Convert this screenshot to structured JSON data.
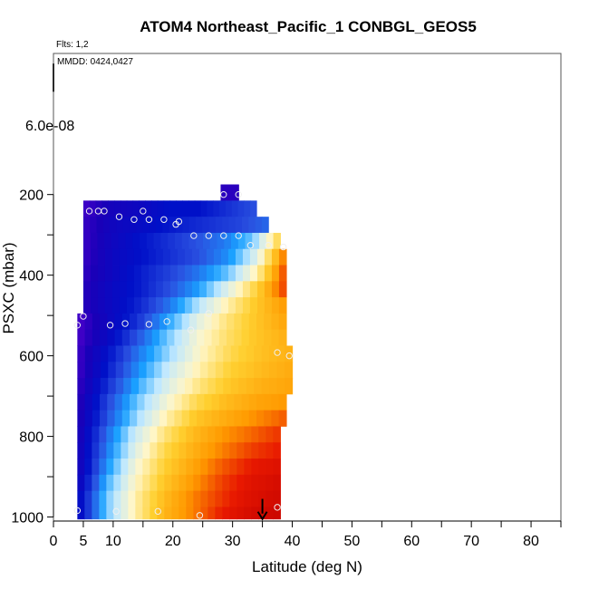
{
  "chart_data": {
    "type": "heatmap",
    "title": "ATOM4 Northeast_Pacific_1 CONBGL_GEOS5",
    "flights_label": "Flts: 1,2",
    "dates_label": "MMDD: 0424,0427",
    "xlabel": "Latitude (deg N)",
    "ylabel": "PSXC (mbar)",
    "xlim": [
      0,
      85
    ],
    "ylim": [
      1010,
      -150
    ],
    "y_reversed": true,
    "x_ticks": [
      0,
      5,
      10,
      20,
      30,
      40,
      50,
      60,
      70,
      80
    ],
    "x_minor_ticks": [
      15,
      25,
      35,
      45,
      55,
      65,
      75,
      85
    ],
    "y_ticks": [
      200,
      400,
      600,
      800,
      1000
    ],
    "y_ticks_minor": [
      300,
      500,
      700,
      900
    ],
    "colorbar_tick_label": "6.0e-08",
    "colormap": [
      "#6a00d8",
      "#1a00b8",
      "#0010c8",
      "#2a50e0",
      "#1aa0ff",
      "#bfe8ff",
      "#fff6c8",
      "#ffd030",
      "#ff9a00",
      "#e81800",
      "#c00000"
    ],
    "pressure_bands": [
      {
        "p": [
          175,
          215
        ],
        "lat": [
          28,
          31
        ],
        "values": [
          0.08,
          0.08,
          0.08
        ]
      },
      {
        "p": [
          215,
          255
        ],
        "lat": [
          5,
          34
        ],
        "values": [
          0.05,
          0.12,
          0.15,
          0.2,
          0.2,
          0.25,
          0.3
        ]
      },
      {
        "p": [
          255,
          295
        ],
        "lat": [
          5,
          36
        ],
        "values": [
          0.06,
          0.14,
          0.18,
          0.22,
          0.25,
          0.28,
          0.33
        ]
      },
      {
        "p": [
          295,
          335
        ],
        "lat": [
          5,
          38
        ],
        "values": [
          0.06,
          0.14,
          0.2,
          0.25,
          0.3,
          0.35,
          0.45,
          0.7
        ]
      },
      {
        "p": [
          335,
          375
        ],
        "lat": [
          5,
          39
        ],
        "values": [
          0.06,
          0.15,
          0.2,
          0.25,
          0.3,
          0.38,
          0.55,
          0.85
        ]
      },
      {
        "p": [
          375,
          415
        ],
        "lat": [
          5,
          39
        ],
        "values": [
          0.07,
          0.15,
          0.22,
          0.28,
          0.35,
          0.45,
          0.62,
          0.88
        ]
      },
      {
        "p": [
          415,
          455
        ],
        "lat": [
          5,
          39
        ],
        "values": [
          0.08,
          0.16,
          0.22,
          0.3,
          0.4,
          0.55,
          0.7,
          0.88
        ]
      },
      {
        "p": [
          455,
          495
        ],
        "lat": [
          5,
          39
        ],
        "values": [
          0.08,
          0.16,
          0.24,
          0.35,
          0.5,
          0.62,
          0.72,
          0.8
        ]
      },
      {
        "p": [
          495,
          535
        ],
        "lat": [
          4,
          39
        ],
        "values": [
          0.04,
          0.14,
          0.25,
          0.4,
          0.55,
          0.65,
          0.72,
          0.78
        ]
      },
      {
        "p": [
          535,
          575
        ],
        "lat": [
          4,
          39
        ],
        "values": [
          0.04,
          0.16,
          0.3,
          0.45,
          0.58,
          0.66,
          0.72,
          0.76
        ]
      },
      {
        "p": [
          575,
          615
        ],
        "lat": [
          4,
          40
        ],
        "values": [
          0.05,
          0.2,
          0.35,
          0.48,
          0.6,
          0.68,
          0.73,
          0.76
        ]
      },
      {
        "p": [
          615,
          655
        ],
        "lat": [
          4,
          40
        ],
        "values": [
          0.05,
          0.22,
          0.38,
          0.52,
          0.62,
          0.7,
          0.74,
          0.77
        ]
      },
      {
        "p": [
          655,
          695
        ],
        "lat": [
          4,
          40
        ],
        "values": [
          0.06,
          0.25,
          0.42,
          0.55,
          0.65,
          0.72,
          0.76,
          0.78
        ]
      },
      {
        "p": [
          695,
          735
        ],
        "lat": [
          4,
          39
        ],
        "values": [
          0.07,
          0.28,
          0.45,
          0.58,
          0.68,
          0.74,
          0.78,
          0.8
        ]
      },
      {
        "p": [
          735,
          775
        ],
        "lat": [
          4,
          39
        ],
        "values": [
          0.08,
          0.3,
          0.48,
          0.62,
          0.72,
          0.77,
          0.81,
          0.85
        ]
      },
      {
        "p": [
          775,
          815
        ],
        "lat": [
          4,
          38
        ],
        "values": [
          0.09,
          0.33,
          0.52,
          0.65,
          0.74,
          0.8,
          0.84,
          0.88
        ]
      },
      {
        "p": [
          815,
          855
        ],
        "lat": [
          4,
          38
        ],
        "values": [
          0.1,
          0.35,
          0.55,
          0.68,
          0.76,
          0.82,
          0.87,
          0.9
        ]
      },
      {
        "p": [
          855,
          895
        ],
        "lat": [
          4,
          38
        ],
        "values": [
          0.1,
          0.38,
          0.58,
          0.7,
          0.78,
          0.85,
          0.9,
          0.93
        ]
      },
      {
        "p": [
          895,
          935
        ],
        "lat": [
          4,
          38
        ],
        "values": [
          0.12,
          0.42,
          0.6,
          0.72,
          0.8,
          0.87,
          0.92,
          0.95
        ]
      },
      {
        "p": [
          935,
          975
        ],
        "lat": [
          4,
          38
        ],
        "values": [
          0.15,
          0.45,
          0.62,
          0.74,
          0.82,
          0.88,
          0.93,
          0.96
        ]
      },
      {
        "p": [
          975,
          1005
        ],
        "lat": [
          4,
          38
        ],
        "values": [
          0.15,
          0.45,
          0.62,
          0.75,
          0.82,
          0.9,
          0.95,
          0.97
        ]
      }
    ],
    "observation_points": [
      {
        "lat": 28.5,
        "p": 200
      },
      {
        "lat": 31,
        "p": 200
      },
      {
        "lat": 6,
        "p": 241
      },
      {
        "lat": 7.5,
        "p": 241
      },
      {
        "lat": 8.5,
        "p": 241
      },
      {
        "lat": 15,
        "p": 241
      },
      {
        "lat": 11,
        "p": 255
      },
      {
        "lat": 13.5,
        "p": 262
      },
      {
        "lat": 16,
        "p": 262
      },
      {
        "lat": 18.5,
        "p": 262
      },
      {
        "lat": 21,
        "p": 267
      },
      {
        "lat": 20.5,
        "p": 274
      },
      {
        "lat": 23.5,
        "p": 302
      },
      {
        "lat": 26,
        "p": 302
      },
      {
        "lat": 28.5,
        "p": 302
      },
      {
        "lat": 31,
        "p": 302
      },
      {
        "lat": 33,
        "p": 326
      },
      {
        "lat": 36,
        "p": 326
      },
      {
        "lat": 38.5,
        "p": 330
      },
      {
        "lat": 5,
        "p": 502
      },
      {
        "lat": 26,
        "p": 495
      },
      {
        "lat": 4,
        "p": 524
      },
      {
        "lat": 9.5,
        "p": 524
      },
      {
        "lat": 12,
        "p": 520
      },
      {
        "lat": 16,
        "p": 522
      },
      {
        "lat": 19,
        "p": 515
      },
      {
        "lat": 23,
        "p": 536
      },
      {
        "lat": 37.5,
        "p": 592
      },
      {
        "lat": 39.5,
        "p": 600
      },
      {
        "lat": 4,
        "p": 984
      },
      {
        "lat": 10.5,
        "p": 986
      },
      {
        "lat": 17.5,
        "p": 986
      },
      {
        "lat": 24.5,
        "p": 996
      },
      {
        "lat": 37.5,
        "p": 976
      }
    ],
    "arrow_marker": {
      "lat": 35,
      "p_start": 955,
      "p_end": 1005
    },
    "colorbar_bar": {
      "p_start": -125,
      "p_end": -55
    }
  }
}
